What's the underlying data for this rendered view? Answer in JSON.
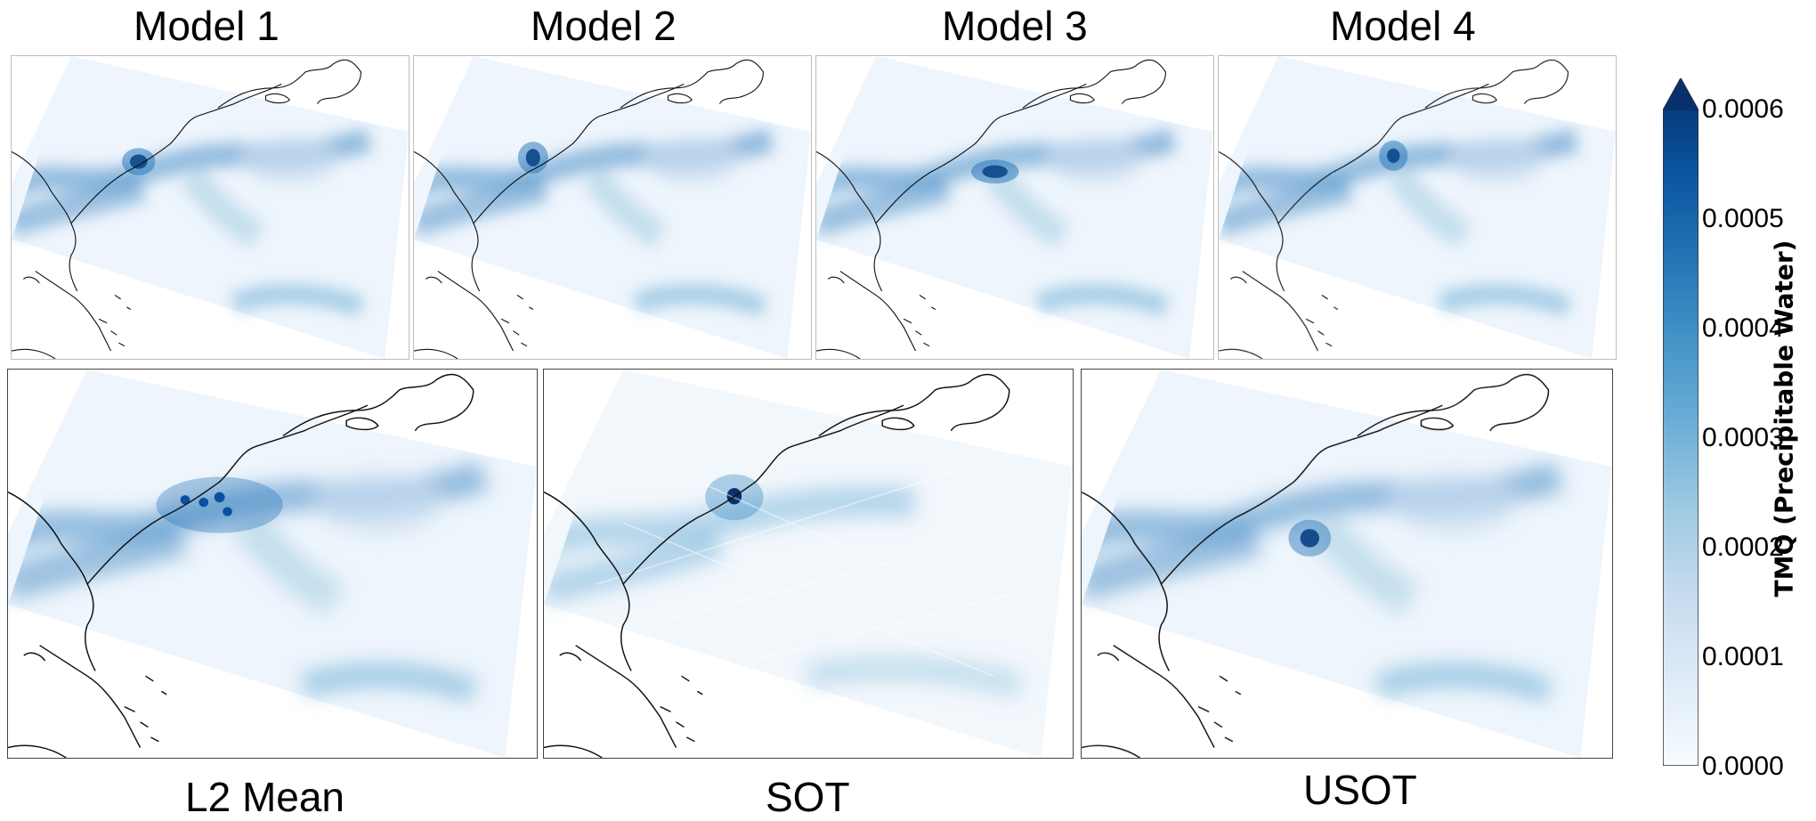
{
  "panels": {
    "model1": {
      "title": "Model 1"
    },
    "model2": {
      "title": "Model 2"
    },
    "model3": {
      "title": "Model 3"
    },
    "model4": {
      "title": "Model 4"
    },
    "l2mean": {
      "title": "L2 Mean"
    },
    "sot": {
      "title": "SOT"
    },
    "usot": {
      "title": "USOT"
    }
  },
  "colorbar": {
    "label": "TMQ (Precipitable Water)",
    "ticks": [
      "0.0000",
      "0.0001",
      "0.0002",
      "0.0003",
      "0.0004",
      "0.0005",
      "0.0006"
    ],
    "range": [
      0.0,
      0.0006
    ],
    "extend": "max",
    "colormap": "Blues",
    "colors": [
      "#f7fbff",
      "#deebf7",
      "#c6dbef",
      "#9ecae1",
      "#6baed6",
      "#4292c6",
      "#2171b5",
      "#08519c",
      "#08306b"
    ]
  }
}
